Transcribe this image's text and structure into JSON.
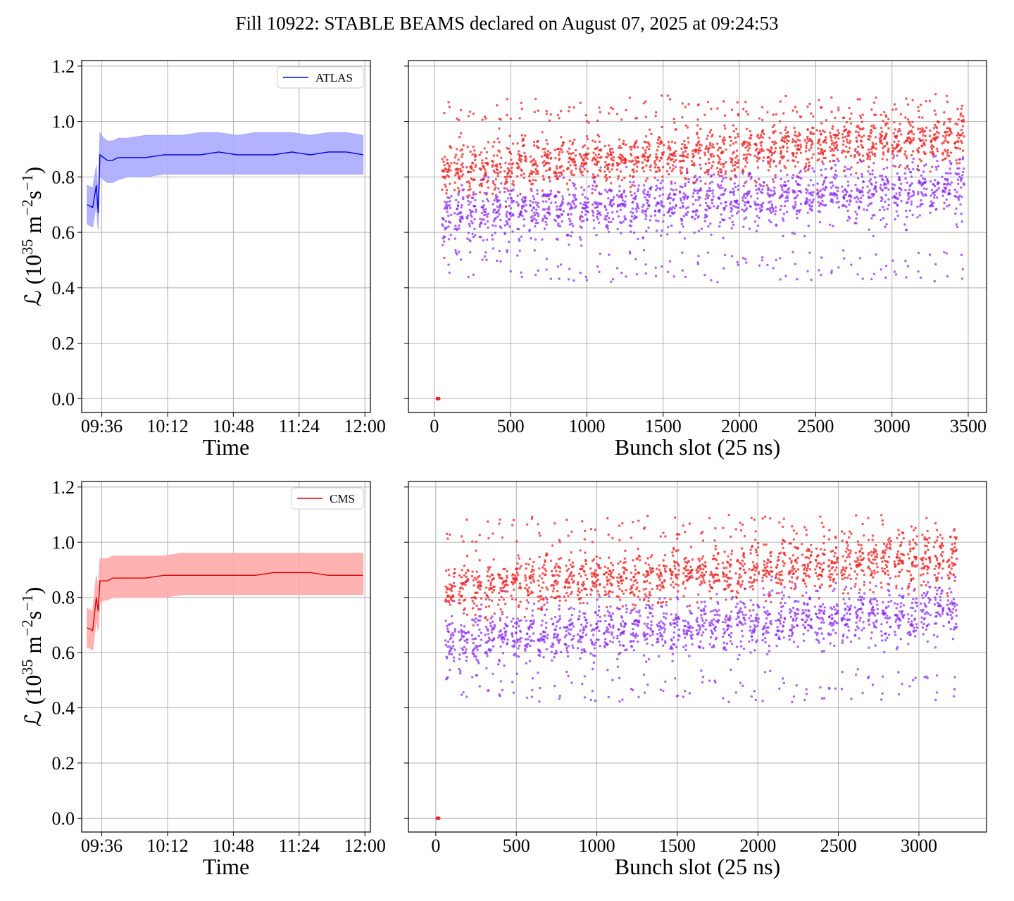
{
  "figure": {
    "title": "Fill 10922: STABLE BEAMS declared on August 07, 2025 at 09:24:53",
    "colors": {
      "atlas_line": "#0000dd",
      "atlas_band": "#aaaaff",
      "cms_line": "#dd0000",
      "cms_band": "#ffaaaa",
      "scatter_red": "#ee2222",
      "scatter_purple": "#8822ee",
      "grid": "#b0b0b0"
    }
  },
  "chart_data": [
    {
      "type": "line",
      "panel": "top-left",
      "xlabel": "Time",
      "ylabel_main": "ℒ (10",
      "ylabel_exp1": "35",
      "ylabel_mid": " m",
      "ylabel_exp2": "−2",
      "ylabel_mid2": "s",
      "ylabel_exp3": "−1",
      "ylabel_end": ")",
      "ylim": [
        -0.05,
        1.22
      ],
      "xlim": [
        "09:25",
        "12:03"
      ],
      "x_ticks": [
        "09:36",
        "10:12",
        "10:48",
        "11:24",
        "12:00"
      ],
      "y_ticks": [
        "0.0",
        "0.2",
        "0.4",
        "0.6",
        "0.8",
        "1.0",
        "1.2"
      ],
      "legend_placement": "top-right",
      "grid": true,
      "series": [
        {
          "name": "ATLAS",
          "x": [
            "09:28",
            "09:31",
            "09:33",
            "09:34",
            "09:35",
            "09:37",
            "09:39",
            "09:42",
            "09:45",
            "09:50",
            "10:00",
            "10:10",
            "10:20",
            "10:30",
            "10:40",
            "10:50",
            "11:00",
            "11:10",
            "11:20",
            "11:30",
            "11:40",
            "11:50",
            "11:59"
          ],
          "y": [
            0.7,
            0.69,
            0.77,
            0.67,
            0.88,
            0.87,
            0.86,
            0.86,
            0.87,
            0.87,
            0.87,
            0.88,
            0.88,
            0.88,
            0.89,
            0.88,
            0.88,
            0.88,
            0.89,
            0.88,
            0.89,
            0.89,
            0.88
          ],
          "lower": [
            0.63,
            0.62,
            0.7,
            0.61,
            0.8,
            0.79,
            0.78,
            0.78,
            0.79,
            0.8,
            0.8,
            0.81,
            0.81,
            0.81,
            0.81,
            0.81,
            0.81,
            0.81,
            0.81,
            0.81,
            0.81,
            0.81,
            0.81
          ],
          "upper": [
            0.77,
            0.76,
            0.84,
            0.73,
            0.96,
            0.94,
            0.93,
            0.93,
            0.94,
            0.94,
            0.95,
            0.95,
            0.95,
            0.96,
            0.96,
            0.95,
            0.96,
            0.96,
            0.96,
            0.95,
            0.96,
            0.96,
            0.95
          ]
        }
      ]
    },
    {
      "type": "scatter",
      "panel": "top-right",
      "xlabel": "Bunch slot (25 ns)",
      "xlim": [
        -170,
        3620
      ],
      "ylim": [
        -0.05,
        1.22
      ],
      "x_ticks": [
        "0",
        "500",
        "1000",
        "1500",
        "2000",
        "2500",
        "3000",
        "3500"
      ],
      "grid": true,
      "bunch_range": [
        30,
        3430
      ],
      "upper_band_center": [
        0.82,
        0.94
      ],
      "lower_band_center": [
        0.65,
        0.76
      ],
      "outlier_point": [
        20,
        0.0
      ],
      "series": [
        {
          "color": "red",
          "level": "upper"
        },
        {
          "color": "purple",
          "level": "lower"
        }
      ]
    },
    {
      "type": "line",
      "panel": "bottom-left",
      "xlabel": "Time",
      "ylabel_main": "ℒ (10",
      "ylabel_exp1": "35",
      "ylabel_mid": " m",
      "ylabel_exp2": "−2",
      "ylabel_mid2": "s",
      "ylabel_exp3": "−1",
      "ylabel_end": ")",
      "ylim": [
        -0.05,
        1.22
      ],
      "xlim": [
        "09:25",
        "12:03"
      ],
      "x_ticks": [
        "09:36",
        "10:12",
        "10:48",
        "11:24",
        "12:00"
      ],
      "y_ticks": [
        "0.0",
        "0.2",
        "0.4",
        "0.6",
        "0.8",
        "1.0",
        "1.2"
      ],
      "legend_placement": "top-right",
      "grid": true,
      "series": [
        {
          "name": "CMS",
          "x": [
            "09:28",
            "09:31",
            "09:33",
            "09:34",
            "09:35",
            "09:37",
            "09:39",
            "09:42",
            "09:45",
            "09:50",
            "10:00",
            "10:10",
            "10:20",
            "10:30",
            "10:40",
            "10:50",
            "11:00",
            "11:10",
            "11:20",
            "11:30",
            "11:40",
            "11:50",
            "11:59"
          ],
          "y": [
            0.69,
            0.68,
            0.8,
            0.75,
            0.86,
            0.86,
            0.86,
            0.87,
            0.87,
            0.87,
            0.87,
            0.88,
            0.88,
            0.88,
            0.88,
            0.88,
            0.88,
            0.89,
            0.89,
            0.89,
            0.88,
            0.88,
            0.88
          ],
          "lower": [
            0.62,
            0.61,
            0.72,
            0.68,
            0.78,
            0.79,
            0.79,
            0.8,
            0.8,
            0.8,
            0.8,
            0.8,
            0.81,
            0.81,
            0.81,
            0.81,
            0.81,
            0.81,
            0.81,
            0.81,
            0.81,
            0.81,
            0.81
          ],
          "upper": [
            0.76,
            0.75,
            0.88,
            0.82,
            0.94,
            0.94,
            0.94,
            0.95,
            0.95,
            0.95,
            0.95,
            0.95,
            0.96,
            0.96,
            0.96,
            0.96,
            0.96,
            0.96,
            0.96,
            0.96,
            0.96,
            0.96,
            0.96
          ]
        }
      ]
    },
    {
      "type": "scatter",
      "panel": "bottom-right",
      "xlabel": "Bunch slot (25 ns)",
      "xlim": [
        -170,
        3420
      ],
      "ylim": [
        -0.05,
        1.22
      ],
      "x_ticks": [
        "0",
        "500",
        "1000",
        "1500",
        "2000",
        "2500",
        "3000"
      ],
      "grid": true,
      "bunch_range": [
        40,
        3230
      ],
      "upper_band_center": [
        0.83,
        0.94
      ],
      "lower_band_center": [
        0.64,
        0.75
      ],
      "outlier_point": [
        10,
        0.0
      ],
      "series": [
        {
          "color": "red",
          "level": "upper"
        },
        {
          "color": "purple",
          "level": "lower"
        }
      ]
    }
  ]
}
